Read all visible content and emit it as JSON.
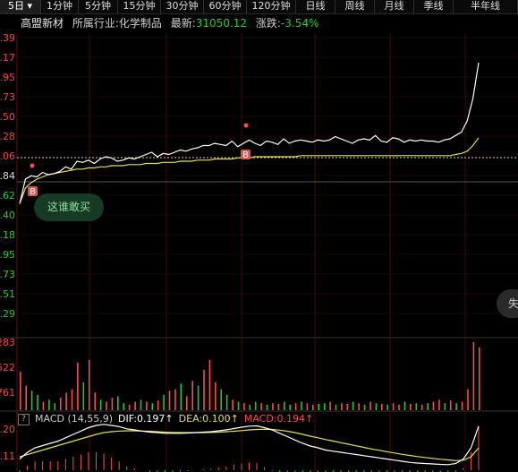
{
  "tabs": [
    {
      "label": "5日 ▾",
      "active": true
    },
    {
      "label": "1分钟"
    },
    {
      "label": "5分钟"
    },
    {
      "label": "15分钟"
    },
    {
      "label": "30分钟"
    },
    {
      "label": "60分钟"
    },
    {
      "label": "120分钟"
    },
    {
      "label": "日线"
    },
    {
      "label": "周线"
    },
    {
      "label": "月线"
    },
    {
      "label": "季线"
    },
    {
      "label": "半年线"
    }
  ],
  "info": {
    "name": "高盟新材",
    "industry_label": "所属行业:",
    "industry": "化学制品",
    "latest_label": "最新:",
    "latest": "31050.12",
    "change_label": "涨跌:",
    "change": "-3.54%"
  },
  "price_axis": [
    {
      "label": ".39",
      "color": "#ff4040"
    },
    {
      "label": ".17",
      "color": "#ff4040"
    },
    {
      "label": ".95",
      "color": "#ff4040"
    },
    {
      "label": ".73",
      "color": "#ff4040"
    },
    {
      "label": ".50",
      "color": "#ff4040"
    },
    {
      "label": ".28",
      "color": "#ff4040"
    },
    {
      "label": ".06",
      "color": "#ff4040"
    },
    {
      "label": ".84",
      "color": "#dddddd"
    },
    {
      "label": ".62",
      "color": "#20d020"
    },
    {
      "label": ".40",
      "color": "#20d020"
    },
    {
      "label": ".18",
      "color": "#20d020"
    },
    {
      "label": ".95",
      "color": "#20d020"
    },
    {
      "label": ".73",
      "color": "#20d020"
    },
    {
      "label": ".51",
      "color": "#20d020"
    },
    {
      "label": ".29",
      "color": "#20d020"
    }
  ],
  "volume_axis": [
    "283",
    "522",
    "761"
  ],
  "macd_axis": [
    ".20",
    ".11"
  ],
  "tip": "这谁敢买",
  "side_button": "失",
  "buy_marker": "B",
  "macd": {
    "help": "?",
    "name": "MACD (14,55,9)",
    "dif": "DIF:0.197↑",
    "dea": "DEA:0.100↑",
    "macd": "MACD:0.194↑"
  },
  "colors": {
    "up": "#ff4a4a",
    "down": "#1ecc1e",
    "price": "#ffffff",
    "avg": "#e6e050",
    "grid": "#5a1010"
  },
  "chart_data": {
    "type": "line",
    "series": [
      {
        "values": [
          -30,
          -8,
          -5,
          -6,
          -2,
          -4,
          -3,
          -1,
          3,
          1,
          8,
          7,
          9,
          6,
          10,
          12,
          11,
          8,
          9,
          11,
          10,
          12,
          14,
          16,
          12,
          15,
          14,
          16,
          18,
          17,
          19,
          20,
          22,
          22,
          24,
          23,
          22,
          26,
          21,
          24,
          27,
          24,
          22,
          26,
          25,
          23,
          28,
          24,
          26,
          27,
          26,
          25,
          27,
          26,
          27,
          30,
          28,
          26,
          24,
          27,
          28,
          27,
          31,
          26,
          25,
          29,
          28,
          25,
          27,
          26,
          27,
          26,
          26,
          25,
          27,
          28,
          31,
          34,
          44,
          64,
          96
        ]
      },
      {
        "values": [
          -30,
          -16,
          -11,
          -8,
          -6,
          -4,
          -3,
          -2,
          -1,
          0,
          1,
          1,
          2,
          2,
          3,
          3,
          4,
          4,
          4,
          5,
          5,
          5,
          6,
          6,
          6,
          7,
          7,
          7,
          8,
          8,
          8,
          9,
          9,
          9,
          10,
          10,
          10,
          10,
          11,
          11,
          11,
          12,
          12,
          12,
          12,
          12,
          12,
          12,
          12,
          13,
          13,
          13,
          13,
          13,
          13,
          13,
          13,
          13,
          13,
          13,
          13,
          13,
          13,
          13,
          13,
          13,
          13,
          13,
          13,
          13,
          13,
          13,
          13,
          13,
          13,
          13,
          14,
          15,
          17,
          22,
          29
        ]
      }
    ],
    "volume": [
      55,
      35,
      28,
      22,
      12,
      15,
      10,
      18,
      25,
      30,
      68,
      40,
      72,
      25,
      15,
      12,
      18,
      20,
      10,
      8,
      12,
      15,
      12,
      10,
      14,
      22,
      28,
      30,
      38,
      20,
      42,
      35,
      58,
      72,
      40,
      30,
      22,
      15,
      12,
      10,
      8,
      12,
      10,
      8,
      10,
      9,
      12,
      8,
      10,
      12,
      10,
      8,
      9,
      10,
      12,
      8,
      10,
      9,
      12,
      10,
      8,
      12,
      10,
      9,
      8,
      10,
      8,
      12,
      9,
      10,
      8,
      10,
      12,
      15,
      10,
      14,
      10,
      12,
      30,
      98,
      90
    ],
    "volume_up": [
      1,
      1,
      0,
      0,
      1,
      0,
      0,
      1,
      1,
      1,
      1,
      0,
      1,
      1,
      0,
      1,
      1,
      0,
      0,
      1,
      1,
      0,
      1,
      0,
      1,
      0,
      1,
      1,
      0,
      1,
      1,
      0,
      1,
      1,
      1,
      0,
      0,
      1,
      0,
      1,
      0,
      0,
      1,
      0,
      1,
      1,
      0,
      0,
      1,
      0,
      1,
      1,
      0,
      0,
      1,
      0,
      1,
      1,
      0,
      1,
      0,
      1,
      0,
      1,
      0,
      1,
      1,
      0,
      1,
      0,
      1,
      0,
      1,
      1,
      0,
      1,
      0,
      1,
      1,
      1,
      1
    ],
    "dif": [
      0.05,
      0.08,
      0.1,
      0.11,
      0.12,
      0.13,
      0.145,
      0.16,
      0.175,
      0.19,
      0.2,
      0.205,
      0.2,
      0.195,
      0.185,
      0.18,
      0.175,
      0.17,
      0.168,
      0.165,
      0.165,
      0.165,
      0.166,
      0.168,
      0.17,
      0.172,
      0.176,
      0.18,
      0.186,
      0.192,
      0.197,
      0.198,
      0.19,
      0.18,
      0.165,
      0.15,
      0.135,
      0.12,
      0.108,
      0.1,
      0.09,
      0.085,
      0.08,
      0.075,
      0.07,
      0.065,
      0.06,
      0.055,
      0.05,
      0.045,
      0.04,
      0.035,
      0.032,
      0.03,
      0.028,
      0.026,
      0.025,
      0.03,
      0.05,
      0.1,
      0.197
    ],
    "dea": [
      0.06,
      0.07,
      0.08,
      0.09,
      0.1,
      0.11,
      0.12,
      0.13,
      0.14,
      0.15,
      0.16,
      0.168,
      0.172,
      0.175,
      0.176,
      0.176,
      0.175,
      0.174,
      0.172,
      0.17,
      0.169,
      0.168,
      0.168,
      0.168,
      0.168,
      0.169,
      0.17,
      0.172,
      0.174,
      0.177,
      0.18,
      0.182,
      0.183,
      0.182,
      0.179,
      0.174,
      0.168,
      0.16,
      0.152,
      0.145,
      0.137,
      0.13,
      0.123,
      0.116,
      0.109,
      0.102,
      0.095,
      0.089,
      0.083,
      0.077,
      0.071,
      0.066,
      0.061,
      0.057,
      0.053,
      0.049,
      0.046,
      0.043,
      0.045,
      0.06,
      0.1
    ],
    "macd_hist": [
      -0.02,
      0.02,
      0.04,
      0.04,
      0.04,
      0.04,
      0.05,
      0.06,
      0.07,
      0.08,
      0.08,
      0.074,
      0.056,
      0.04,
      0.018,
      0.008,
      0,
      -0.008,
      -0.008,
      -0.01,
      -0.008,
      -0.006,
      -0.004,
      0,
      0.004,
      0.006,
      0.012,
      0.016,
      0.024,
      0.03,
      0.034,
      0.032,
      0.014,
      -0.004,
      -0.028,
      -0.048,
      -0.066,
      -0.08,
      -0.088,
      -0.09,
      -0.094,
      -0.09,
      -0.086,
      -0.082,
      -0.078,
      -0.074,
      -0.07,
      -0.068,
      -0.066,
      -0.064,
      -0.062,
      -0.062,
      -0.058,
      -0.054,
      -0.05,
      -0.046,
      -0.042,
      -0.026,
      0.01,
      0.08,
      0.194
    ]
  }
}
